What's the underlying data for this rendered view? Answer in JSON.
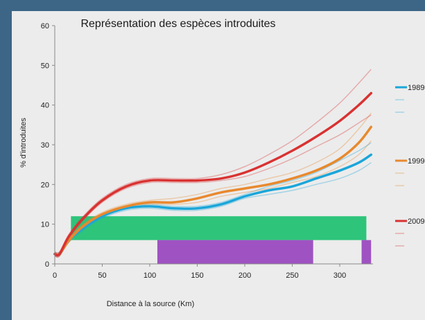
{
  "chart_data": {
    "type": "line",
    "title": "Représentation des espèces introduites",
    "xlabel": "Distance à la source (Km)",
    "ylabel": "% d'introduites",
    "xlim": [
      0,
      335
    ],
    "ylim": [
      0,
      60
    ],
    "x_ticks": [
      "0",
      "50",
      "100",
      "150",
      "200",
      "250",
      "300"
    ],
    "y_ticks": [
      "0",
      "10",
      "20",
      "30",
      "40",
      "50",
      "60"
    ],
    "grid": false,
    "legend_position": "right",
    "series": [
      {
        "name": "1989",
        "color": "#1aa6d9",
        "x": [
          0,
          5,
          15,
          30,
          50,
          75,
          100,
          125,
          150,
          175,
          200,
          225,
          250,
          275,
          300,
          320,
          333
        ],
        "y": [
          2.5,
          2.5,
          6,
          9,
          12,
          14,
          14.5,
          14,
          14,
          15,
          17,
          18.5,
          19.5,
          21.5,
          23.5,
          25.5,
          27.5
        ],
        "ci_upper": [
          3,
          3,
          6.5,
          9.5,
          12.5,
          14.5,
          15,
          14.5,
          14.5,
          15.5,
          17.5,
          19.5,
          21,
          23,
          26,
          28.5,
          30.5
        ],
        "ci_lower": [
          2,
          2,
          5.5,
          8.5,
          11.5,
          13.5,
          14,
          13.5,
          13.5,
          14.5,
          16.5,
          17.5,
          18.5,
          20,
          21.5,
          23.5,
          25.5
        ]
      },
      {
        "name": "1999",
        "color": "#e8892e",
        "x": [
          0,
          5,
          15,
          30,
          50,
          75,
          100,
          125,
          150,
          175,
          200,
          225,
          250,
          275,
          300,
          320,
          333
        ],
        "y": [
          2.5,
          2.5,
          6,
          9.5,
          12.5,
          14.5,
          15.5,
          15.5,
          16.5,
          18,
          19,
          20,
          21.5,
          23.5,
          26.5,
          30.5,
          34.5
        ],
        "ci_upper": [
          3,
          3,
          6.5,
          10,
          13,
          15,
          16,
          16.5,
          17.5,
          19,
          20,
          21.5,
          23,
          25.5,
          29,
          34,
          38
        ],
        "ci_lower": [
          2,
          2,
          5.5,
          9,
          12,
          14,
          15,
          15,
          15.5,
          17,
          18,
          19,
          20.5,
          22,
          24.5,
          27.5,
          31
        ]
      },
      {
        "name": "2009",
        "color": "#d93232",
        "x": [
          0,
          5,
          15,
          30,
          50,
          75,
          100,
          125,
          150,
          175,
          200,
          225,
          250,
          275,
          300,
          320,
          333
        ],
        "y": [
          2.5,
          2.5,
          7,
          11.5,
          16,
          19.5,
          21,
          21,
          21,
          21.5,
          23,
          25.5,
          28.5,
          32,
          36,
          40,
          43
        ],
        "ci_upper": [
          3,
          3,
          7.5,
          12,
          16.5,
          20,
          21.5,
          21.5,
          21.5,
          22.5,
          24.5,
          27.5,
          31,
          35.5,
          40.5,
          45.5,
          49
        ],
        "ci_lower": [
          2,
          2,
          6.5,
          11,
          15.5,
          19,
          20.5,
          20.5,
          20.5,
          21,
          22,
          24,
          26.5,
          29.5,
          32.5,
          35.5,
          37.5
        ]
      }
    ],
    "bars": [
      {
        "color": "#2ec47a",
        "x_start": 17,
        "x_end": 328,
        "y_bottom": 6,
        "y_top": 12
      },
      {
        "color": "#9f52c2",
        "x_start": 108,
        "x_end": 272,
        "y_bottom": 0,
        "y_top": 6
      },
      {
        "color": "#9f52c2",
        "x_start": 323,
        "x_end": 333,
        "y_bottom": 0,
        "y_top": 6
      }
    ]
  }
}
